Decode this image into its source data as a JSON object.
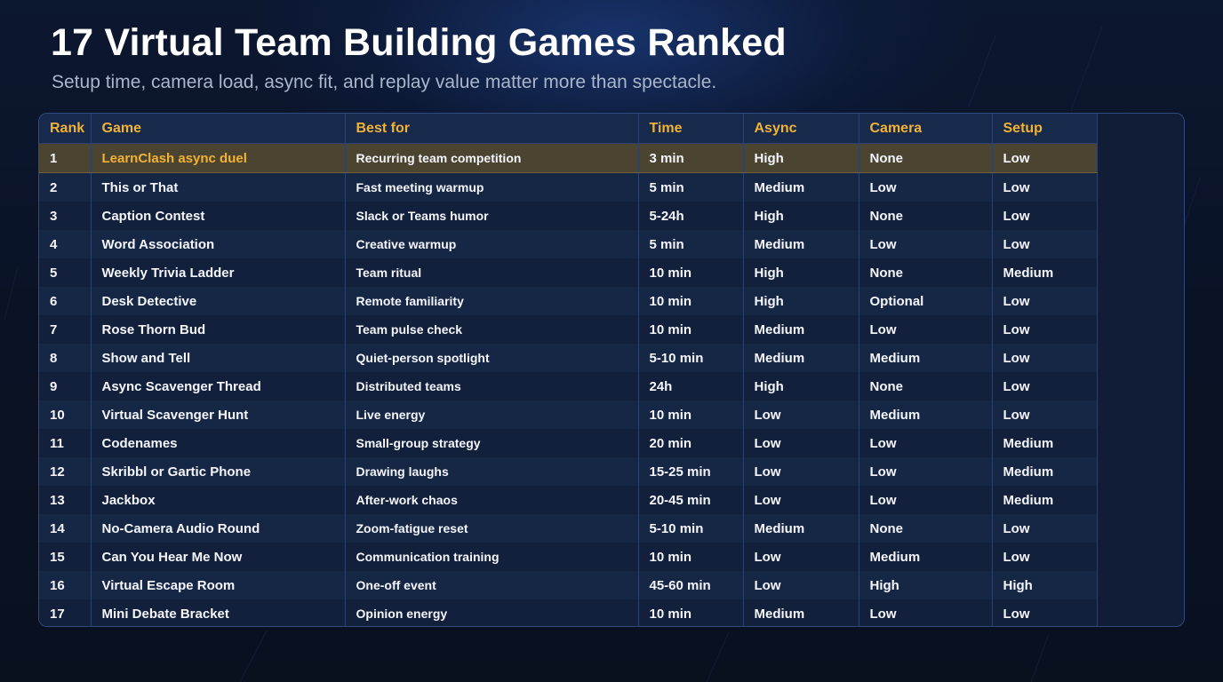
{
  "header": {
    "title": "17 Virtual Team Building Games Ranked",
    "subtitle": "Setup time, camera load, async fit, and replay value matter more than spectacle."
  },
  "table": {
    "columns": [
      "Rank",
      "Game",
      "Best for",
      "Time",
      "Async",
      "Camera",
      "Setup"
    ],
    "rows": [
      {
        "rank": "1",
        "game": "LearnClash async duel",
        "best_for": "Recurring team competition",
        "time": "3 min",
        "async": "High",
        "camera": "None",
        "setup": "Low"
      },
      {
        "rank": "2",
        "game": "This or That",
        "best_for": "Fast meeting warmup",
        "time": "5 min",
        "async": "Medium",
        "camera": "Low",
        "setup": "Low"
      },
      {
        "rank": "3",
        "game": "Caption Contest",
        "best_for": "Slack or Teams humor",
        "time": "5-24h",
        "async": "High",
        "camera": "None",
        "setup": "Low"
      },
      {
        "rank": "4",
        "game": "Word Association",
        "best_for": "Creative warmup",
        "time": "5 min",
        "async": "Medium",
        "camera": "Low",
        "setup": "Low"
      },
      {
        "rank": "5",
        "game": "Weekly Trivia Ladder",
        "best_for": "Team ritual",
        "time": "10 min",
        "async": "High",
        "camera": "None",
        "setup": "Medium"
      },
      {
        "rank": "6",
        "game": "Desk Detective",
        "best_for": "Remote familiarity",
        "time": "10 min",
        "async": "High",
        "camera": "Optional",
        "setup": "Low"
      },
      {
        "rank": "7",
        "game": "Rose Thorn Bud",
        "best_for": "Team pulse check",
        "time": "10 min",
        "async": "Medium",
        "camera": "Low",
        "setup": "Low"
      },
      {
        "rank": "8",
        "game": "Show and Tell",
        "best_for": "Quiet-person spotlight",
        "time": "5-10 min",
        "async": "Medium",
        "camera": "Medium",
        "setup": "Low"
      },
      {
        "rank": "9",
        "game": "Async Scavenger Thread",
        "best_for": "Distributed teams",
        "time": "24h",
        "async": "High",
        "camera": "None",
        "setup": "Low"
      },
      {
        "rank": "10",
        "game": "Virtual Scavenger Hunt",
        "best_for": "Live energy",
        "time": "10 min",
        "async": "Low",
        "camera": "Medium",
        "setup": "Low"
      },
      {
        "rank": "11",
        "game": "Codenames",
        "best_for": "Small-group strategy",
        "time": "20 min",
        "async": "Low",
        "camera": "Low",
        "setup": "Medium"
      },
      {
        "rank": "12",
        "game": "Skribbl or Gartic Phone",
        "best_for": "Drawing laughs",
        "time": "15-25 min",
        "async": "Low",
        "camera": "Low",
        "setup": "Medium"
      },
      {
        "rank": "13",
        "game": "Jackbox",
        "best_for": "After-work chaos",
        "time": "20-45 min",
        "async": "Low",
        "camera": "Low",
        "setup": "Medium"
      },
      {
        "rank": "14",
        "game": "No-Camera Audio Round",
        "best_for": "Zoom-fatigue reset",
        "time": "5-10 min",
        "async": "Medium",
        "camera": "None",
        "setup": "Low"
      },
      {
        "rank": "15",
        "game": "Can You Hear Me Now",
        "best_for": "Communication training",
        "time": "10 min",
        "async": "Low",
        "camera": "Medium",
        "setup": "Low"
      },
      {
        "rank": "16",
        "game": "Virtual Escape Room",
        "best_for": "One-off event",
        "time": "45-60 min",
        "async": "Low",
        "camera": "High",
        "setup": "High"
      },
      {
        "rank": "17",
        "game": "Mini Debate Bracket",
        "best_for": "Opinion energy",
        "time": "10 min",
        "async": "Medium",
        "camera": "Low",
        "setup": "Low"
      }
    ]
  },
  "colors": {
    "accent": "#f2b233",
    "background": "#0a1326",
    "highlight_row": "#4a4430"
  }
}
